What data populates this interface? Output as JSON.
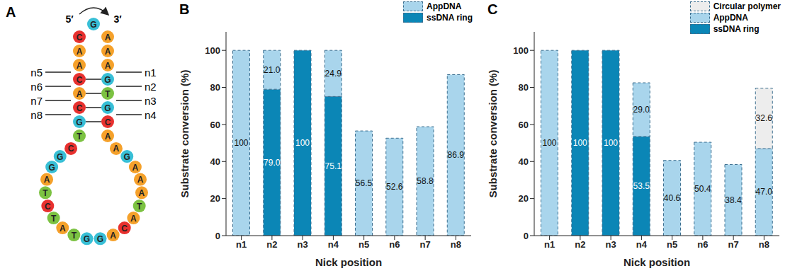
{
  "diagram": {
    "title": "A",
    "five_prime": "5′",
    "three_prime": "3′",
    "top": "G",
    "left": [
      "C",
      "A",
      "A",
      "C",
      "A",
      "C",
      "G",
      "T"
    ],
    "right": [
      "A",
      "A",
      "A",
      "G",
      "T",
      "G",
      "C",
      "A"
    ],
    "loop": [
      "C",
      "G",
      "G",
      "A",
      "T",
      "C",
      "T",
      "A",
      "T",
      "G",
      "G",
      "A",
      "C",
      "A",
      "T",
      "A",
      "A",
      "A",
      "G",
      "A"
    ],
    "nicks_left": [
      "n5",
      "n6",
      "n7",
      "n8"
    ],
    "nicks_right": [
      "n1",
      "n2",
      "n3",
      "n4"
    ],
    "base_colors": {
      "A": "#f5a12b",
      "C": "#e8312f",
      "G": "#38bfd6",
      "T": "#7cc242"
    }
  },
  "chart_data": [
    {
      "type": "bar",
      "title": "B",
      "stacked": true,
      "data_labels": true,
      "legend": "upper right",
      "x_label": "Nick position",
      "y_label": "Substrate conversion (%)",
      "categories": [
        "n1",
        "n2",
        "n3",
        "n4",
        "n5",
        "n6",
        "n7",
        "n8"
      ],
      "ylim": [
        0,
        110
      ],
      "yticks": [
        0,
        20,
        40,
        60,
        80,
        100
      ],
      "series": [
        {
          "name": "ssDNA ring",
          "color": "#0b86b6",
          "values": [
            null,
            79.0,
            100,
            75.1,
            null,
            null,
            null,
            null
          ],
          "value_labels": [
            null,
            "79.0",
            "100",
            "75.1",
            null,
            null,
            null,
            null
          ]
        },
        {
          "name": "AppDNA",
          "color": "#a9d5ec",
          "values": [
            100,
            21.0,
            null,
            24.9,
            56.5,
            52.6,
            58.8,
            86.9
          ],
          "value_labels": [
            "100",
            "21.0",
            null,
            "24.9",
            "56.5",
            "52.6",
            "58.8",
            "86.9"
          ]
        }
      ]
    },
    {
      "type": "bar",
      "title": "C",
      "stacked": true,
      "data_labels": true,
      "legend": "upper right",
      "x_label": "Nick position",
      "y_label": "Substrate conversion (%)",
      "categories": [
        "n1",
        "n2",
        "n3",
        "n4",
        "n5",
        "n6",
        "n7",
        "n8"
      ],
      "ylim": [
        0,
        110
      ],
      "yticks": [
        0,
        20,
        40,
        60,
        80,
        100
      ],
      "series": [
        {
          "name": "ssDNA ring",
          "color": "#0b86b6",
          "values": [
            null,
            100,
            100,
            53.5,
            null,
            null,
            null,
            null
          ],
          "value_labels": [
            null,
            "100",
            "100",
            "53.5",
            null,
            null,
            null,
            null
          ]
        },
        {
          "name": "AppDNA",
          "color": "#a9d5ec",
          "values": [
            100,
            null,
            null,
            29.0,
            40.6,
            50.4,
            38.4,
            47.0
          ],
          "value_labels": [
            "100",
            null,
            null,
            "29.0",
            "40.6",
            "50.4",
            "38.4",
            "47.0"
          ]
        },
        {
          "name": "Circular polymer",
          "color": "#ededed",
          "values": [
            null,
            null,
            null,
            null,
            null,
            null,
            null,
            32.6
          ],
          "value_labels": [
            null,
            null,
            null,
            null,
            null,
            null,
            null,
            "32.6"
          ]
        }
      ]
    }
  ]
}
